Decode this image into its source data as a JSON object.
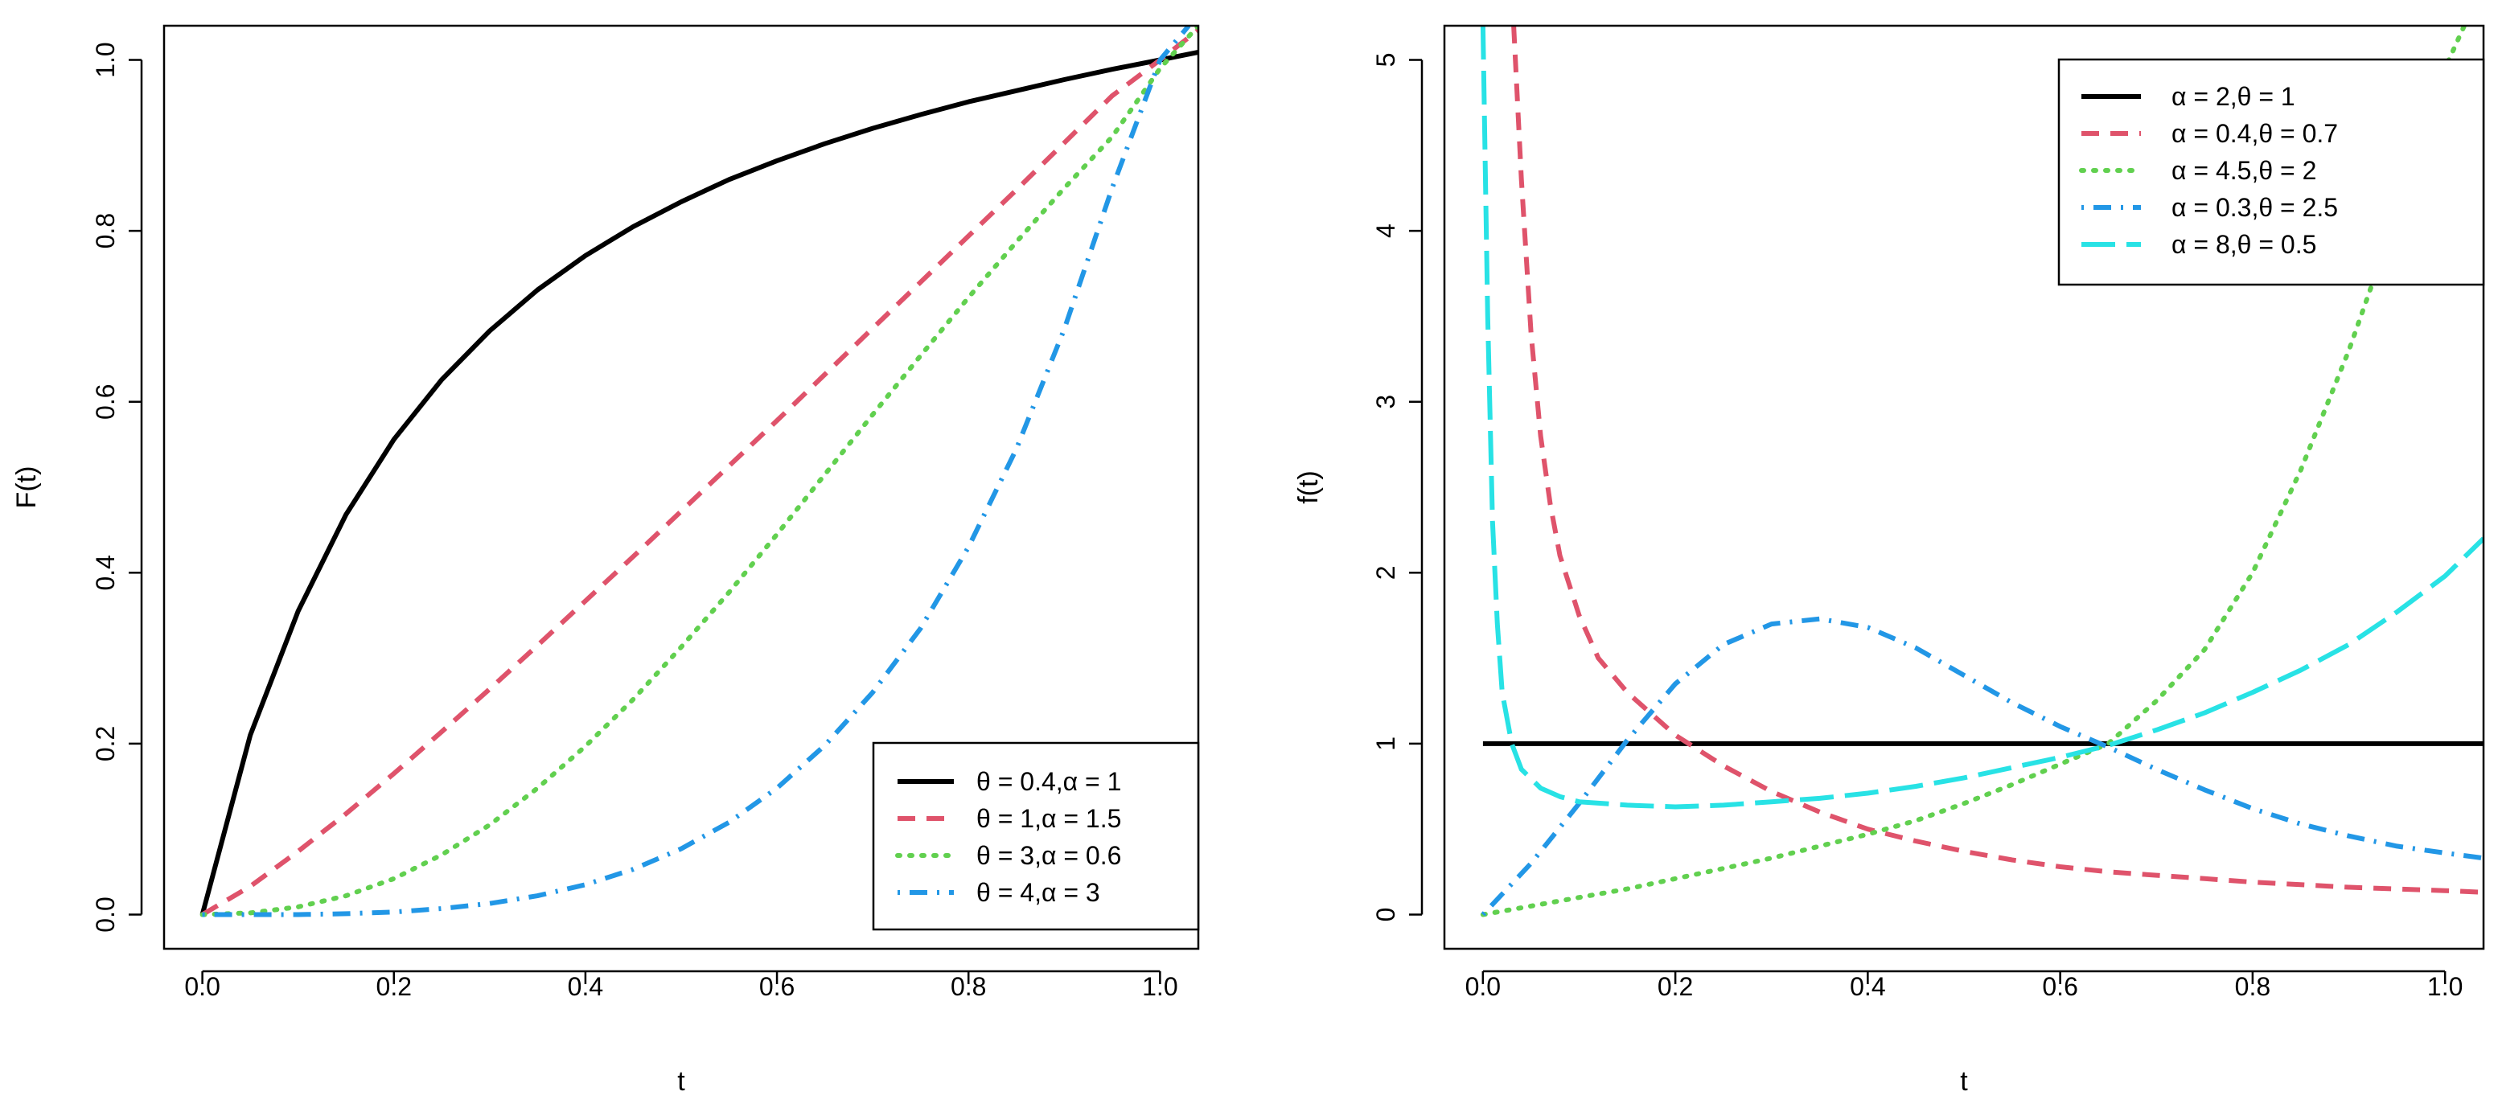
{
  "chart_data": [
    {
      "type": "line",
      "title": "",
      "xlabel": "t",
      "ylabel": "F(t)",
      "xlim": [
        -0.04,
        1.04
      ],
      "ylim": [
        -0.04,
        1.04
      ],
      "xticks": [
        0.0,
        0.2,
        0.4,
        0.6,
        0.8,
        1.0
      ],
      "xtick_labels": [
        "0.0",
        "0.2",
        "0.4",
        "0.6",
        "0.8",
        "1.0"
      ],
      "yticks": [
        0.0,
        0.2,
        0.4,
        0.6,
        0.8,
        1.0
      ],
      "ytick_labels": [
        "0.0",
        "0.2",
        "0.4",
        "0.6",
        "0.8",
        "1.0"
      ],
      "legend_position": "bottom-right",
      "series": [
        {
          "name": "θ = 0.4,α = 1",
          "color": "#000000",
          "dash": "solid",
          "x": [
            0,
            0.05,
            0.1,
            0.15,
            0.2,
            0.25,
            0.3,
            0.35,
            0.4,
            0.45,
            0.5,
            0.55,
            0.6,
            0.65,
            0.7,
            0.75,
            0.8,
            0.85,
            0.9,
            0.95,
            1.0,
            1.04
          ],
          "y": [
            0,
            0.21,
            0.355,
            0.468,
            0.556,
            0.626,
            0.683,
            0.731,
            0.771,
            0.805,
            0.834,
            0.86,
            0.882,
            0.902,
            0.92,
            0.936,
            0.951,
            0.964,
            0.977,
            0.989,
            1.0,
            1.009
          ]
        },
        {
          "name": "θ = 1,α = 1.5",
          "color": "#df536b",
          "dash": "dashed",
          "x": [
            0,
            0.05,
            0.1,
            0.15,
            0.2,
            0.25,
            0.3,
            0.35,
            0.4,
            0.45,
            0.5,
            0.55,
            0.6,
            0.65,
            0.7,
            0.75,
            0.8,
            0.85,
            0.9,
            0.95,
            1.0,
            1.04
          ],
          "y": [
            0,
            0.033,
            0.074,
            0.118,
            0.165,
            0.214,
            0.264,
            0.315,
            0.367,
            0.419,
            0.472,
            0.525,
            0.578,
            0.632,
            0.686,
            0.74,
            0.794,
            0.848,
            0.903,
            0.958,
            1.0,
            1.035
          ]
        },
        {
          "name": "θ = 3,α = 0.6",
          "color": "#61d04f",
          "dash": "dotted",
          "x": [
            0,
            0.05,
            0.1,
            0.15,
            0.2,
            0.25,
            0.3,
            0.35,
            0.4,
            0.45,
            0.5,
            0.55,
            0.6,
            0.65,
            0.7,
            0.75,
            0.8,
            0.85,
            0.9,
            0.95,
            1.0,
            1.04
          ],
          "y": [
            0,
            0.002,
            0.009,
            0.022,
            0.042,
            0.07,
            0.105,
            0.148,
            0.197,
            0.252,
            0.313,
            0.377,
            0.445,
            0.515,
            0.585,
            0.654,
            0.722,
            0.787,
            0.85,
            0.91,
            0.99,
            1.04
          ]
        },
        {
          "name": "θ = 4,α = 3",
          "color": "#2297e6",
          "dash": "dotdash",
          "x": [
            0,
            0.05,
            0.1,
            0.15,
            0.2,
            0.25,
            0.3,
            0.35,
            0.4,
            0.45,
            0.5,
            0.55,
            0.6,
            0.65,
            0.7,
            0.75,
            0.8,
            0.85,
            0.9,
            0.95,
            1.0,
            1.03
          ],
          "y": [
            0,
            0,
            0,
            0.001,
            0.003,
            0.007,
            0.013,
            0.022,
            0.035,
            0.053,
            0.077,
            0.108,
            0.148,
            0.198,
            0.26,
            0.335,
            0.43,
            0.545,
            0.685,
            0.85,
            1.0,
            1.04
          ]
        }
      ],
      "legend": [
        "θ = 0.4,α = 1",
        "θ = 1,α = 1.5",
        "θ = 3,α = 0.6",
        "θ = 4,α = 3"
      ]
    },
    {
      "type": "line",
      "title": "",
      "xlabel": "t",
      "ylabel": "f(t)",
      "xlim": [
        -0.04,
        1.04
      ],
      "ylim": [
        -0.2,
        5.2
      ],
      "xticks": [
        0.0,
        0.2,
        0.4,
        0.6,
        0.8,
        1.0
      ],
      "xtick_labels": [
        "0.0",
        "0.2",
        "0.4",
        "0.6",
        "0.8",
        "1.0"
      ],
      "yticks": [
        0,
        1,
        2,
        3,
        4,
        5
      ],
      "ytick_labels": [
        "0",
        "1",
        "2",
        "3",
        "4",
        "5"
      ],
      "legend_position": "top-right",
      "series": [
        {
          "name": "α = 2,θ = 1",
          "color": "#000000",
          "dash": "solid",
          "x": [
            0,
            1.04
          ],
          "y": [
            1,
            1
          ]
        },
        {
          "name": "α = 0.4,θ = 0.7",
          "color": "#df536b",
          "dash": "dashed",
          "x": [
            0.032,
            0.04,
            0.05,
            0.06,
            0.07,
            0.08,
            0.1,
            0.12,
            0.15,
            0.2,
            0.25,
            0.3,
            0.35,
            0.4,
            0.45,
            0.5,
            0.55,
            0.6,
            0.65,
            0.7,
            0.75,
            0.8,
            0.85,
            0.9,
            0.95,
            1.0,
            1.04
          ],
          "y": [
            5.2,
            4.3,
            3.4,
            2.8,
            2.4,
            2.1,
            1.75,
            1.5,
            1.3,
            1.05,
            0.87,
            0.72,
            0.6,
            0.5,
            0.43,
            0.37,
            0.32,
            0.28,
            0.25,
            0.23,
            0.21,
            0.19,
            0.175,
            0.16,
            0.15,
            0.14,
            0.13
          ]
        },
        {
          "name": "α = 4.5,θ = 2",
          "color": "#61d04f",
          "dash": "dotted",
          "x": [
            0,
            0.05,
            0.1,
            0.15,
            0.2,
            0.25,
            0.3,
            0.35,
            0.4,
            0.45,
            0.5,
            0.55,
            0.6,
            0.65,
            0.7,
            0.75,
            0.8,
            0.85,
            0.9,
            0.95,
            1.0,
            1.02
          ],
          "y": [
            0,
            0.05,
            0.1,
            0.15,
            0.21,
            0.27,
            0.33,
            0.4,
            0.47,
            0.55,
            0.65,
            0.76,
            0.88,
            1.0,
            1.25,
            1.55,
            2.0,
            2.6,
            3.3,
            4.1,
            4.95,
            5.2
          ]
        },
        {
          "name": "α = 0.3,θ = 2.5",
          "color": "#2297e6",
          "dash": "dotdash",
          "x": [
            0,
            0.05,
            0.1,
            0.15,
            0.2,
            0.25,
            0.3,
            0.35,
            0.4,
            0.45,
            0.5,
            0.55,
            0.6,
            0.65,
            0.7,
            0.75,
            0.8,
            0.85,
            0.9,
            0.95,
            1.0,
            1.04
          ],
          "y": [
            0,
            0.3,
            0.65,
            1.02,
            1.35,
            1.58,
            1.7,
            1.73,
            1.68,
            1.56,
            1.4,
            1.24,
            1.1,
            0.98,
            0.85,
            0.73,
            0.62,
            0.53,
            0.46,
            0.4,
            0.36,
            0.33
          ]
        },
        {
          "name": "α = 8,θ = 0.5",
          "color": "#28e2e5",
          "dash": "longdash",
          "x": [
            0,
            0.005,
            0.01,
            0.015,
            0.02,
            0.03,
            0.04,
            0.06,
            0.08,
            0.1,
            0.15,
            0.2,
            0.25,
            0.3,
            0.35,
            0.4,
            0.45,
            0.5,
            0.55,
            0.6,
            0.65,
            0.7,
            0.75,
            0.8,
            0.85,
            0.9,
            0.95,
            1.0,
            1.04
          ],
          "y": [
            5.2,
            3.5,
            2.3,
            1.7,
            1.3,
            1.0,
            0.85,
            0.74,
            0.69,
            0.66,
            0.64,
            0.63,
            0.64,
            0.66,
            0.68,
            0.71,
            0.75,
            0.8,
            0.86,
            0.92,
            0.99,
            1.08,
            1.18,
            1.3,
            1.43,
            1.58,
            1.77,
            1.98,
            2.2
          ]
        }
      ],
      "legend": [
        "α = 2,θ = 1",
        "α = 0.4,θ = 0.7",
        "α = 4.5,θ = 2",
        "α = 0.3,θ = 2.5",
        "α = 8,θ = 0.5"
      ]
    }
  ]
}
